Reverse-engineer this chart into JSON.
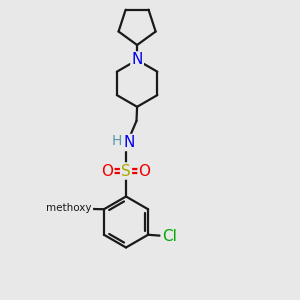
{
  "background_color": "#e8e8e8",
  "bond_color": "#1a1a1a",
  "atom_colors": {
    "N": "#0000ee",
    "O": "#ee0000",
    "S": "#aaaa00",
    "Cl": "#00aa00",
    "C": "#1a1a1a",
    "H": "#5599aa"
  },
  "figsize": [
    3.0,
    3.0
  ],
  "dpi": 100
}
